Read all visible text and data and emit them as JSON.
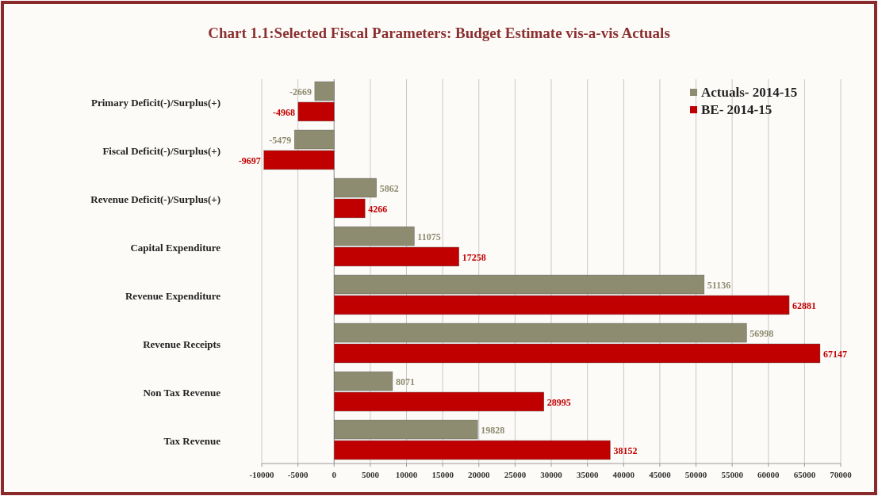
{
  "chart_data": {
    "type": "bar",
    "orientation": "horizontal",
    "title": "Chart 1.1:Selected Fiscal Parameters: Budget Estimate vis-a-vis Actuals",
    "categories": [
      "Primary Deficit(-)/Surplus(+)",
      "Fiscal Deficit(-)/Surplus(+)",
      "Revenue Deficit(-)/Surplus(+)",
      "Capital Expenditure",
      "Revenue Expenditure",
      "Revenue Receipts",
      "Non Tax Revenue",
      "Tax Revenue"
    ],
    "series": [
      {
        "name": "Actuals- 2014-15",
        "color": "#8e8c70",
        "values": [
          -2669,
          -5479,
          5862,
          11075,
          51136,
          56998,
          8071,
          19828
        ]
      },
      {
        "name": "BE- 2014-15",
        "color": "#c00000",
        "values": [
          -4968,
          -9697,
          4266,
          17258,
          62881,
          67147,
          28995,
          38152
        ]
      }
    ],
    "xlim": [
      -10000,
      70000
    ],
    "xticks": [
      -10000,
      -5000,
      0,
      5000,
      10000,
      15000,
      20000,
      25000,
      30000,
      35000,
      40000,
      45000,
      50000,
      55000,
      60000,
      65000,
      70000
    ],
    "grid": "x",
    "legend": "top right",
    "data_labels": true
  }
}
